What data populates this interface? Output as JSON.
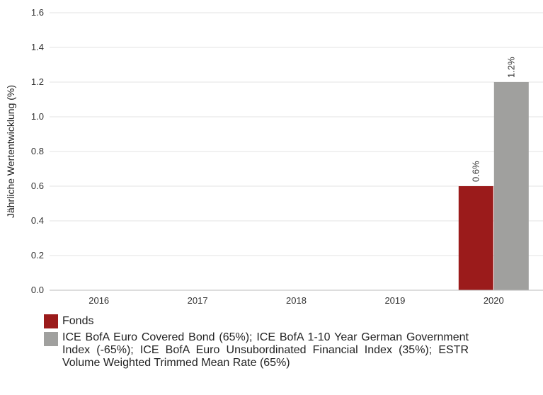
{
  "chart_data": {
    "type": "bar",
    "categories": [
      "2016",
      "2017",
      "2018",
      "2019",
      "2020"
    ],
    "ylabel": "Jährliche Wertentwicklung (%)",
    "ylim": [
      0,
      1.6
    ],
    "yticks": [
      "0.0",
      "0.2",
      "0.4",
      "0.6",
      "0.8",
      "1.0",
      "1.2",
      "1.4",
      "1.6"
    ],
    "grid": true,
    "legend_position": "bottom",
    "series": [
      {
        "name": "Fonds",
        "color": "#9b1b1b",
        "values": [
          null,
          null,
          null,
          null,
          0.6
        ],
        "labels": [
          "",
          "",
          "",
          "",
          "0.6%"
        ]
      },
      {
        "name": "ICE BofA Euro Covered Bond (65%); ICE BofA 1-10 Year German Government Index (-65%); ICE BofA Euro Unsubordinated Financial Index (35%); ESTR Volume Weighted Trimmed Mean Rate (65%)",
        "color": "#a0a09e",
        "values": [
          null,
          null,
          null,
          null,
          1.2
        ],
        "labels": [
          "",
          "",
          "",
          "",
          "1.2%"
        ]
      }
    ]
  }
}
